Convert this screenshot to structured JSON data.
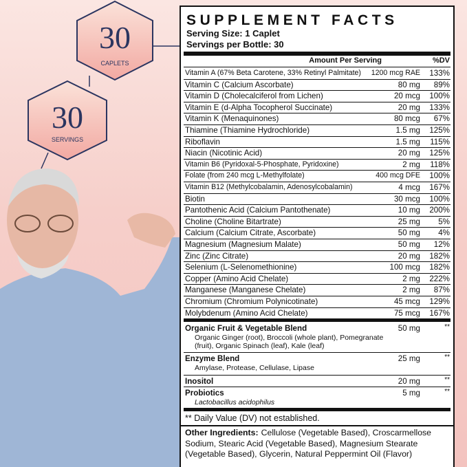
{
  "badges": [
    {
      "number": "30",
      "label": "CAPLETS"
    },
    {
      "number": "30",
      "label": "SERVINGS"
    }
  ],
  "panel": {
    "title": "SUPPLEMENT FACTS",
    "serving_size": "Serving Size: 1 Caplet",
    "servings": "Servings per Bottle: 30",
    "col_amount": "Amount Per Serving",
    "col_dv": "%DV",
    "nutrients": [
      [
        "Vitamin A (67% Beta Carotene, 33% Retinyl Palmitate)",
        "1200 mcg RAE",
        "133%"
      ],
      [
        "Vitamin C (Calcium Ascorbate)",
        "80 mg",
        "89%"
      ],
      [
        "Vitamin D (Cholecalciferol from Lichen)",
        "20 mcg",
        "100%"
      ],
      [
        "Vitamin E (d-Alpha Tocopherol Succinate)",
        "20 mg",
        "133%"
      ],
      [
        "Vitamin K (Menaquinones)",
        "80 mcg",
        "67%"
      ],
      [
        "Thiamine (Thiamine Hydrochloride)",
        "1.5 mg",
        "125%"
      ],
      [
        "Riboflavin",
        "1.5 mg",
        "115%"
      ],
      [
        "Niacin (Nicotinic Acid)",
        "20 mg",
        "125%"
      ],
      [
        "Vitamin B6 (Pyridoxal-5-Phosphate, Pyridoxine)",
        "2 mg",
        "118%"
      ],
      [
        "Folate (from 240 mcg L-Methylfolate)",
        "400 mcg DFE",
        "100%"
      ],
      [
        "Vitamin B12 (Methylcobalamin, Adenosylcobalamin)",
        "4 mcg",
        "167%"
      ],
      [
        "Biotin",
        "30 mcg",
        "100%"
      ],
      [
        "Pantothenic Acid (Calcium Pantothenate)",
        "10 mg",
        "200%"
      ],
      [
        "Choline (Choline Bitartrate)",
        "25 mg",
        "5%"
      ],
      [
        "Calcium (Calcium Citrate, Ascorbate)",
        "50 mg",
        "4%"
      ],
      [
        "Magnesium (Magnesium Malate)",
        "50 mg",
        "12%"
      ],
      [
        "Zinc (Zinc Citrate)",
        "20 mg",
        "182%"
      ],
      [
        "Selenium (L-Selenomethionine)",
        "100 mcg",
        "182%"
      ],
      [
        "Copper (Amino Acid Chelate)",
        "2 mg",
        "222%"
      ],
      [
        "Manganese (Manganese Chelate)",
        "2 mg",
        "87%"
      ],
      [
        "Chromium (Chromium Polynicotinate)",
        "45 mcg",
        "129%"
      ],
      [
        "Molybdenum (Amino Acid Chelate)",
        "75 mcg",
        "167%"
      ]
    ],
    "blends": [
      {
        "name": "Organic Fruit & Vegetable Blend",
        "amount": "50 mg",
        "dv": "**",
        "detail": "Organic Ginger (root), Broccoli (whole plant), Pomegranate (fruit), Organic Spinach (leaf), Kale (leaf)"
      },
      {
        "name": "Enzyme Blend",
        "amount": "25 mg",
        "dv": "**",
        "detail": "Amylase, Protease, Cellulase, Lipase"
      },
      {
        "name": "Inositol",
        "amount": "20 mg",
        "dv": "**"
      },
      {
        "name": "Probiotics",
        "amount": "5 mg",
        "dv": "**",
        "detail": "Lactobacillus acidophilus"
      }
    ],
    "footnote": "** Daily Value (DV) not established.",
    "other_label": "Other Ingredients:",
    "other_text": "Cellulose (Vegetable Based), Croscarmellose Sodium, Stearic Acid (Vegetable Based), Magnesium Stearate (Vegetable Based), Glycerin, Natural Peppermint Oil (Flavor)"
  }
}
